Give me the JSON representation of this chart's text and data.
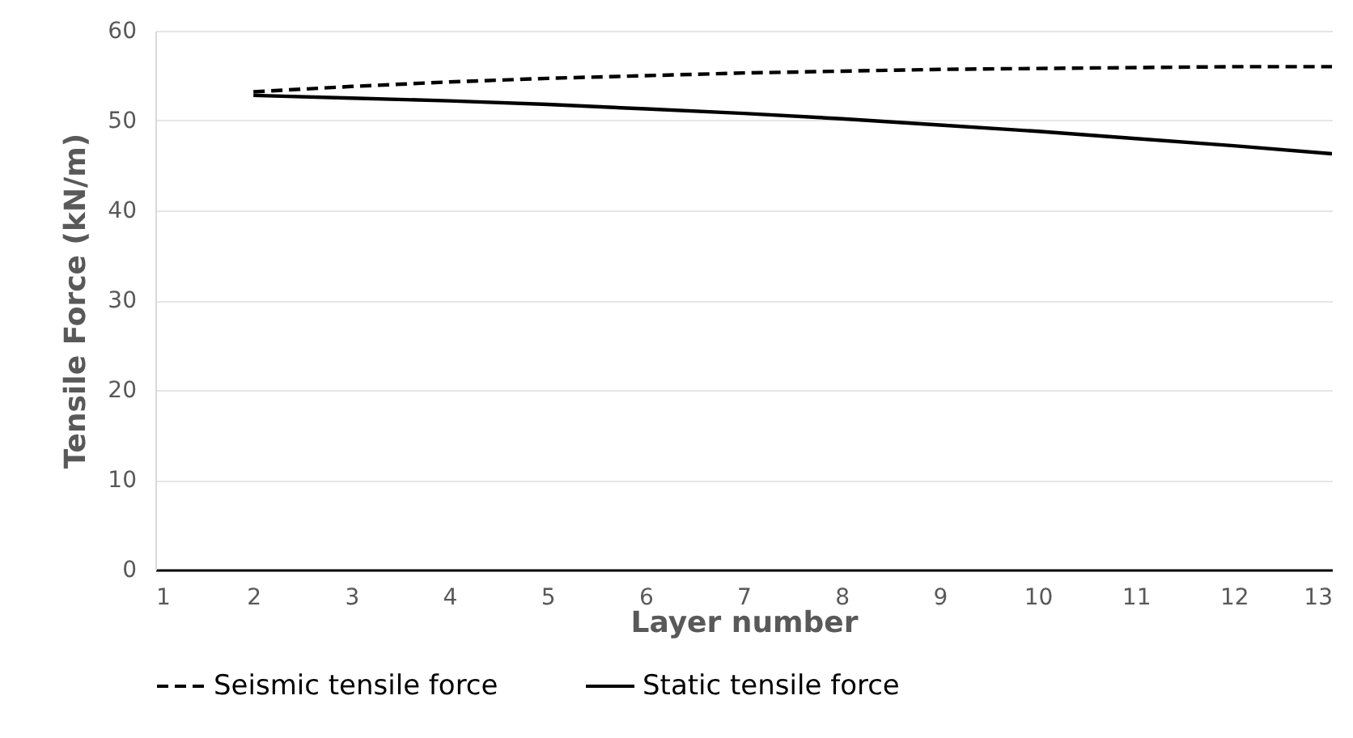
{
  "chart_data": {
    "type": "line",
    "xlabel": "Layer number",
    "ylabel": "Tensile Force (kN/m)",
    "x": [
      2,
      3,
      4,
      5,
      6,
      7,
      8,
      9,
      10,
      11,
      12,
      13
    ],
    "series": [
      {
        "name": "Seismic tensile force",
        "color": "#000000",
        "line_style": "dashed",
        "values": [
          53.2,
          53.8,
          54.3,
          54.7,
          55.0,
          55.3,
          55.5,
          55.7,
          55.8,
          55.9,
          56.0,
          56.0
        ]
      },
      {
        "name": "Static tensile force",
        "color": "#000000",
        "line_style": "solid",
        "values": [
          52.8,
          52.5,
          52.2,
          51.8,
          51.3,
          50.8,
          50.2,
          49.5,
          48.8,
          48.0,
          47.2,
          46.3
        ]
      }
    ],
    "xlim": [
      1,
      13
    ],
    "xticks": [
      1,
      2,
      3,
      4,
      5,
      6,
      7,
      8,
      9,
      10,
      11,
      12,
      13
    ],
    "ylim": [
      0,
      60
    ],
    "yticks": [
      0,
      10,
      20,
      30,
      40,
      50,
      60
    ],
    "grid": "y",
    "legend": "bottom",
    "marker": "none"
  }
}
